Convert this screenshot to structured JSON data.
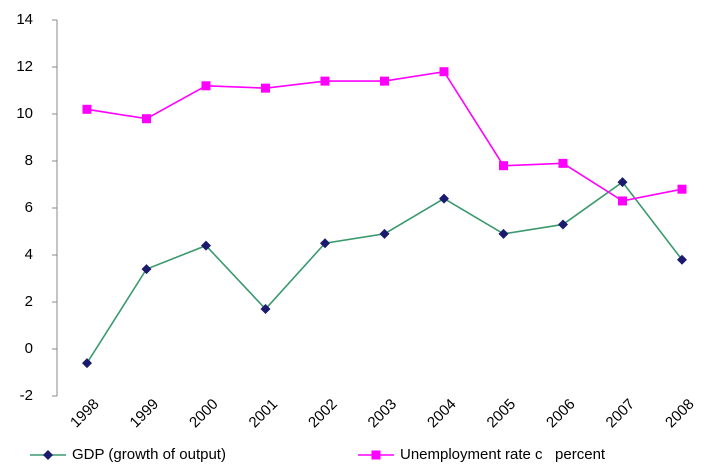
{
  "chart_data": {
    "type": "line",
    "categories": [
      "1998",
      "1999",
      "2000",
      "2001",
      "2002",
      "2003",
      "2004",
      "2005",
      "2006",
      "2007",
      "2008"
    ],
    "series": [
      {
        "name": "GDP (growth of output)",
        "color": "#3a9a6e",
        "marker": "diamond",
        "marker_color": "#1a1a6e",
        "values": [
          -0.6,
          3.4,
          4.4,
          1.7,
          4.5,
          4.9,
          6.4,
          4.9,
          5.3,
          7.1,
          3.8
        ]
      },
      {
        "name": "Unemployment rate c   percent",
        "color": "#ff00ff",
        "marker": "square",
        "marker_color": "#ff00ff",
        "values": [
          10.2,
          9.8,
          11.2,
          11.1,
          11.4,
          11.4,
          11.8,
          7.8,
          7.9,
          6.3,
          6.8
        ]
      }
    ],
    "ylim": [
      -2,
      14
    ],
    "yticks": [
      -2,
      0,
      2,
      4,
      6,
      8,
      10,
      12,
      14
    ],
    "grid": false,
    "legend": "bottom"
  }
}
